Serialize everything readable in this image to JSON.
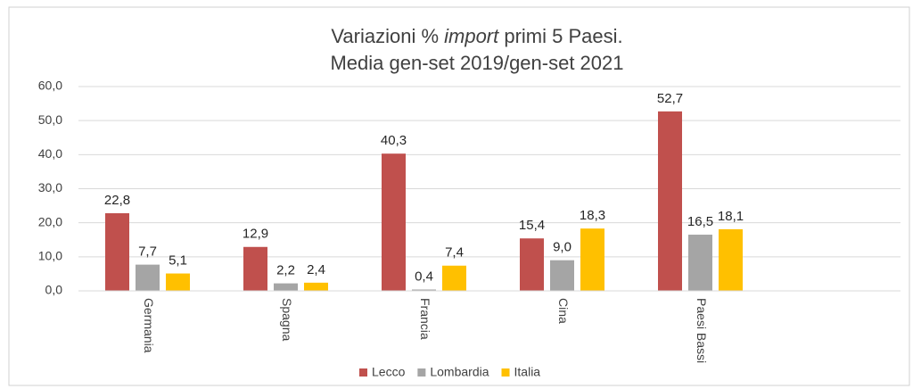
{
  "chart_data": {
    "type": "bar",
    "title": [
      [
        "Variazioni % ",
        "import",
        " primi 5 Paesi."
      ],
      [
        "Media gen-set 2019/gen-set 2021"
      ]
    ],
    "categories": [
      "Germania",
      "Spagna",
      "Francia",
      "Cina",
      "Paesi Bassi"
    ],
    "series": [
      {
        "name": "Lecco",
        "color": "#c0504d",
        "values": [
          22.8,
          12.9,
          40.3,
          15.4,
          52.7
        ],
        "value_labels": [
          "22,8",
          "12,9",
          "40,3",
          "15,4",
          "52,7"
        ]
      },
      {
        "name": "Lombardia",
        "color": "#a5a5a5",
        "values": [
          7.7,
          2.2,
          0.4,
          9.0,
          16.5
        ],
        "value_labels": [
          "7,7",
          "2,2",
          "0,4",
          "9,0",
          "16,5"
        ]
      },
      {
        "name": "Italia",
        "color": "#ffc000",
        "values": [
          5.1,
          2.4,
          7.4,
          18.3,
          18.1
        ],
        "value_labels": [
          "5,1",
          "2,4",
          "7,4",
          "18,3",
          "18,1"
        ]
      }
    ],
    "ylim": [
      0,
      60
    ],
    "yticks": [
      {
        "value": 0,
        "label": "0,0"
      },
      {
        "value": 10,
        "label": "10,0"
      },
      {
        "value": 20,
        "label": "20,0"
      },
      {
        "value": 30,
        "label": "30,0"
      },
      {
        "value": 40,
        "label": "40,0"
      },
      {
        "value": 50,
        "label": "50,0"
      },
      {
        "value": 60,
        "label": "60,0"
      }
    ],
    "grid": true,
    "legend": "bottom"
  }
}
